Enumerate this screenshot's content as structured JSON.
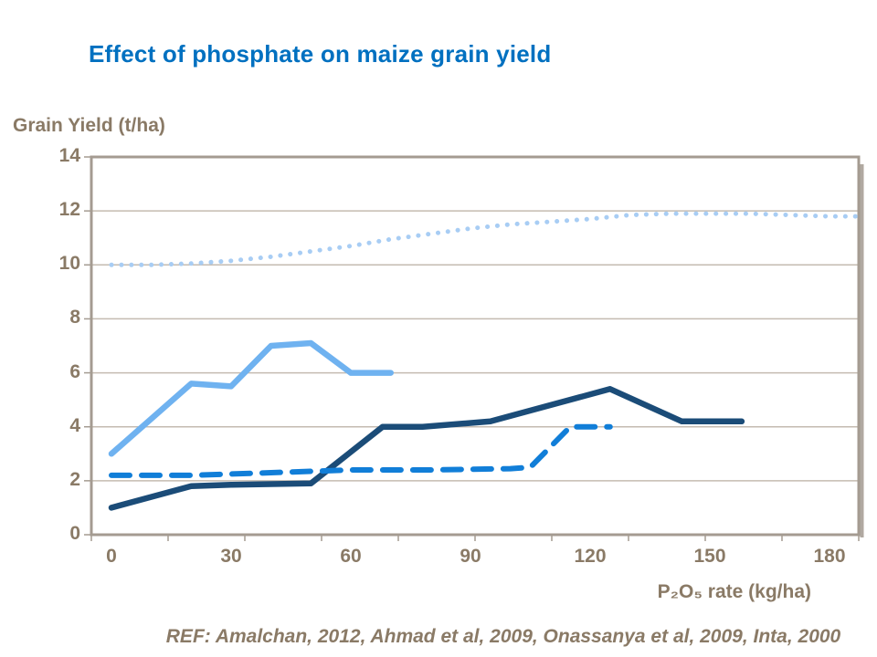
{
  "slide": {
    "title": "Effect of phosphate on maize grain yield",
    "title_color": "#0070C0",
    "text_color": "#8A7A66",
    "background_color": "#FFFFFF",
    "reference": "REF: Amalchan, 2012, Ahmad et al, 2009, Onassanya et al, 2009, Inta, 2000"
  },
  "chart_data": {
    "type": "line",
    "title": "Effect of phosphate on maize grain yield",
    "ylabel": "Grain Yield (t/ha)",
    "xlabel": "P₂O₅ rate (kg/ha)",
    "xlim": [
      0,
      192
    ],
    "ylim": [
      0,
      14
    ],
    "x_ticks": [
      0,
      30,
      60,
      90,
      120,
      150,
      180
    ],
    "y_ticks": [
      0,
      2,
      4,
      6,
      8,
      10,
      12,
      14
    ],
    "grid": "horizontal",
    "legend": "none",
    "axis_color": "#A49B91",
    "grid_color": "#C4BBB1",
    "series": [
      {
        "id": "pale-blue-dotted",
        "style": "dotted",
        "color": "#A8CDF4",
        "width": 5,
        "points": [
          [
            0,
            10.0
          ],
          [
            10,
            10.0
          ],
          [
            20,
            10.05
          ],
          [
            30,
            10.15
          ],
          [
            40,
            10.3
          ],
          [
            50,
            10.5
          ],
          [
            60,
            10.7
          ],
          [
            70,
            10.95
          ],
          [
            80,
            11.15
          ],
          [
            90,
            11.35
          ],
          [
            100,
            11.5
          ],
          [
            110,
            11.6
          ],
          [
            120,
            11.7
          ],
          [
            130,
            11.85
          ],
          [
            140,
            11.9
          ],
          [
            150,
            11.9
          ],
          [
            160,
            11.9
          ],
          [
            170,
            11.85
          ],
          [
            180,
            11.8
          ],
          [
            187,
            11.8
          ]
        ]
      },
      {
        "id": "light-blue-solid",
        "style": "solid",
        "color": "#6FB2F0",
        "width": 6.5,
        "points": [
          [
            0,
            3.0
          ],
          [
            20,
            5.6
          ],
          [
            30,
            5.5
          ],
          [
            40,
            7.0
          ],
          [
            50,
            7.1
          ],
          [
            60,
            6.0
          ],
          [
            70,
            6.0
          ]
        ]
      },
      {
        "id": "dark-navy-solid",
        "style": "solid",
        "color": "#1B4C78",
        "width": 6.5,
        "points": [
          [
            0,
            1.0
          ],
          [
            20,
            1.8
          ],
          [
            30,
            1.85
          ],
          [
            50,
            1.9
          ],
          [
            68,
            4.0
          ],
          [
            78,
            4.0
          ],
          [
            95,
            4.2
          ],
          [
            125,
            5.4
          ],
          [
            143,
            4.2
          ],
          [
            158,
            4.2
          ]
        ]
      },
      {
        "id": "medium-blue-dashed",
        "style": "dashed",
        "color": "#117ED8",
        "width": 6,
        "points": [
          [
            0,
            2.2
          ],
          [
            20,
            2.2
          ],
          [
            40,
            2.3
          ],
          [
            60,
            2.4
          ],
          [
            80,
            2.4
          ],
          [
            100,
            2.45
          ],
          [
            105,
            2.5
          ],
          [
            115,
            4.0
          ],
          [
            125,
            4.0
          ]
        ]
      }
    ]
  }
}
